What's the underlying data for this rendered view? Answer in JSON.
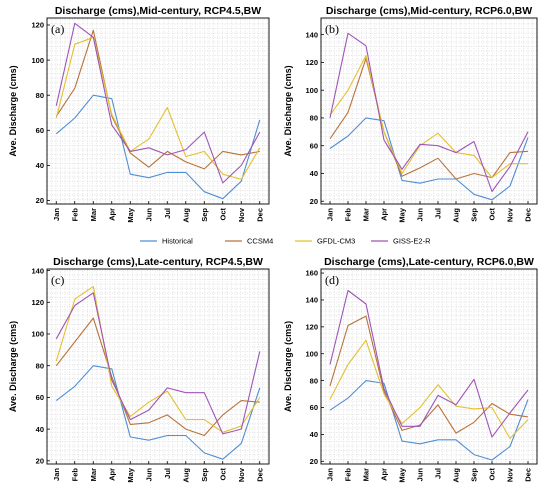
{
  "colors": {
    "Historical": "#4f8fd4",
    "CCSM4": "#b8733a",
    "GFDL-CM3": "#e3c02f",
    "GISS-E2-R": "#9e55b7"
  },
  "legend": [
    "Historical",
    "CCSM4",
    "GFDL-CM3",
    "GISS-E2-R"
  ],
  "chart_data": [
    {
      "type": "line",
      "title": "Discharge (cms),Mid-century, RCP4.5,BW",
      "panel_label": "(a)",
      "ylabel": "Ave. Discharge (cms)",
      "categories": [
        "Jan",
        "Feb",
        "Mar",
        "Apr",
        "May",
        "Jun",
        "Jul",
        "Aug",
        "Sep",
        "Oct",
        "Nov",
        "Dec"
      ],
      "ylim": [
        18,
        124
      ],
      "yticks": [
        20,
        40,
        60,
        80,
        100,
        120
      ],
      "grid": true,
      "series": [
        {
          "name": "Historical",
          "values": [
            58,
            67,
            80,
            78,
            35,
            33,
            36,
            36,
            25,
            21,
            31,
            66
          ]
        },
        {
          "name": "CCSM4",
          "values": [
            68,
            84,
            117,
            68,
            47,
            39,
            48,
            42,
            38,
            48,
            46,
            48
          ]
        },
        {
          "name": "GFDL-CM3",
          "values": [
            67,
            109,
            113,
            69,
            48,
            55,
            73,
            45,
            48,
            35,
            32,
            50
          ]
        },
        {
          "name": "GISS-E2-R",
          "values": [
            74,
            121,
            113,
            63,
            48,
            50,
            46,
            49,
            59,
            30,
            40,
            59
          ]
        }
      ]
    },
    {
      "type": "line",
      "title": "Discharge (cms),Mid-century, RCP6.0,BW",
      "panel_label": "(b)",
      "ylabel": "Ave. Discharge (cms)",
      "categories": [
        "Jan",
        "Feb",
        "Mar",
        "Apr",
        "May",
        "Jun",
        "Jul",
        "Aug",
        "Sep",
        "Oct",
        "Nov",
        "Dec"
      ],
      "ylim": [
        18,
        152
      ],
      "yticks": [
        20,
        40,
        60,
        80,
        100,
        120,
        140
      ],
      "grid": true,
      "series": [
        {
          "name": "Historical",
          "values": [
            58,
            67,
            80,
            78,
            35,
            33,
            36,
            36,
            25,
            21,
            31,
            66
          ]
        },
        {
          "name": "CCSM4",
          "values": [
            65,
            84,
            123,
            70,
            38,
            44,
            51,
            36,
            40,
            37,
            55,
            56
          ]
        },
        {
          "name": "GFDL-CM3",
          "values": [
            82,
            100,
            125,
            70,
            40,
            60,
            69,
            55,
            53,
            37,
            47,
            47
          ]
        },
        {
          "name": "GISS-E2-R",
          "values": [
            80,
            141,
            132,
            64,
            43,
            61,
            60,
            55,
            63,
            27,
            45,
            70
          ]
        }
      ]
    },
    {
      "type": "line",
      "title": "Discharge (cms),Late-century, RCP4.5,BW",
      "panel_label": "(c)",
      "ylabel": "Ave. Discharge (cms)",
      "categories": [
        "Jan",
        "Feb",
        "Mar",
        "Apr",
        "May",
        "Jun",
        "Jul",
        "Aug",
        "Sep",
        "Oct",
        "Nov",
        "Dec"
      ],
      "ylim": [
        18,
        141
      ],
      "yticks": [
        20,
        40,
        60,
        80,
        100,
        120,
        140
      ],
      "grid": true,
      "series": [
        {
          "name": "Historical",
          "values": [
            58,
            67,
            80,
            78,
            35,
            33,
            36,
            36,
            25,
            21,
            31,
            66
          ]
        },
        {
          "name": "CCSM4",
          "values": [
            80,
            95,
            110,
            73,
            43,
            44,
            49,
            40,
            36,
            49,
            58,
            57
          ]
        },
        {
          "name": "GFDL-CM3",
          "values": [
            83,
            122,
            130,
            67,
            48,
            57,
            64,
            46,
            46,
            38,
            42,
            60
          ]
        },
        {
          "name": "GISS-E2-R",
          "values": [
            97,
            118,
            126,
            71,
            46,
            52,
            66,
            63,
            63,
            37,
            40,
            89
          ]
        }
      ]
    },
    {
      "type": "line",
      "title": "Discharge (cms),Late-century, RCP6.0,BW",
      "panel_label": "(d)",
      "ylabel": "Ave. Discharge (cms)",
      "categories": [
        "Jan",
        "Feb",
        "Mar",
        "Apr",
        "May",
        "Jun",
        "Jul",
        "Aug",
        "Sep",
        "Oct",
        "Nov",
        "Dec"
      ],
      "ylim": [
        18,
        163
      ],
      "yticks": [
        20,
        40,
        60,
        80,
        100,
        120,
        140,
        160
      ],
      "grid": true,
      "series": [
        {
          "name": "Historical",
          "values": [
            58,
            67,
            80,
            78,
            35,
            33,
            36,
            36,
            25,
            21,
            31,
            66
          ]
        },
        {
          "name": "CCSM4",
          "values": [
            76,
            121,
            128,
            72,
            43,
            47,
            62,
            41,
            49,
            63,
            55,
            53
          ]
        },
        {
          "name": "GFDL-CM3",
          "values": [
            66,
            92,
            110,
            70,
            48,
            60,
            77,
            61,
            59,
            60,
            37,
            51
          ]
        },
        {
          "name": "GISS-E2-R",
          "values": [
            92,
            147,
            137,
            74,
            46,
            46,
            69,
            62,
            81,
            38,
            56,
            73
          ]
        }
      ]
    }
  ]
}
